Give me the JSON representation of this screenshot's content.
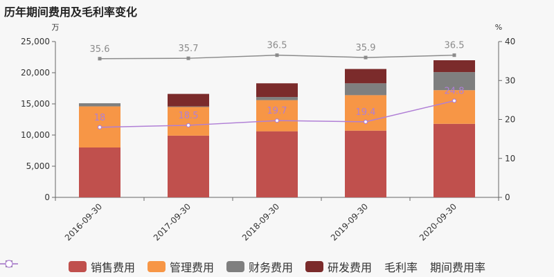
{
  "title": "历年期间费用及毛利率变化",
  "chart_data": {
    "type": "bar",
    "stacked": true,
    "categories": [
      "2016-09-30",
      "2017-09-30",
      "2018-09-30",
      "2019-09-30",
      "2020-09-30"
    ],
    "y_left": {
      "unit": "万",
      "range": [
        0,
        25000
      ],
      "ticks": [
        0,
        5000,
        10000,
        15000,
        20000,
        25000
      ],
      "tick_labels": [
        "0",
        "5,000",
        "10,000",
        "15,000",
        "20,000",
        "25,000"
      ]
    },
    "y_right": {
      "unit": "%",
      "range": [
        0,
        40
      ],
      "ticks": [
        0,
        10,
        20,
        30,
        40
      ],
      "tick_labels": [
        "0",
        "10",
        "20",
        "30",
        "40"
      ]
    },
    "series": [
      {
        "name": "销售费用",
        "type": "bar",
        "color": "#c0504d",
        "values": [
          8000,
          9900,
          10600,
          10700,
          11800
        ]
      },
      {
        "name": "管理费用",
        "type": "bar",
        "color": "#f79646",
        "values": [
          6600,
          4600,
          5000,
          5700,
          5400
        ]
      },
      {
        "name": "财务费用",
        "type": "bar",
        "color": "#7f7f7f",
        "values": [
          500,
          100,
          500,
          1900,
          2900
        ]
      },
      {
        "name": "研发费用",
        "type": "bar",
        "color": "#7b2b2b",
        "values": [
          0,
          2000,
          2200,
          2300,
          1900
        ]
      },
      {
        "name": "毛利率",
        "type": "line",
        "axis": "right",
        "color": "#8b8b8b",
        "marker": "square",
        "values": [
          35.6,
          35.7,
          36.5,
          35.9,
          36.5
        ],
        "labels": [
          "35.6",
          "35.7",
          "36.5",
          "35.9",
          "36.5"
        ]
      },
      {
        "name": "期间费用率",
        "type": "line",
        "axis": "right",
        "color": "#b07fd6",
        "marker": "circle",
        "values": [
          18,
          18.5,
          19.7,
          19.4,
          24.8
        ],
        "labels": [
          "18",
          "18.5",
          "19.7",
          "19.4",
          "24.8"
        ]
      }
    ]
  }
}
